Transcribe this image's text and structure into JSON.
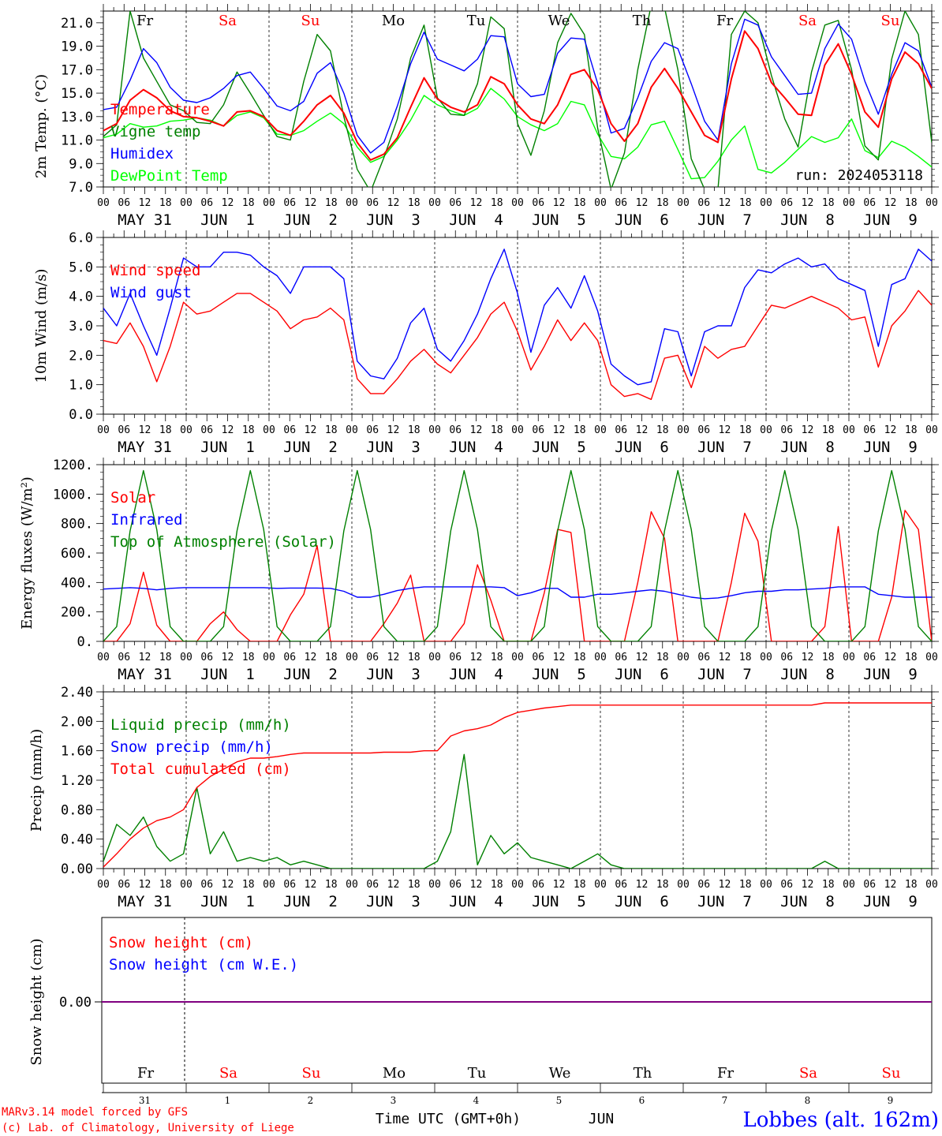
{
  "chart_data": {
    "type": "line",
    "run_label": "run: 2024053118",
    "time_axis": {
      "days": [
        "MAY 31",
        "JUN  1",
        "JUN  2",
        "JUN  3",
        "JUN  4",
        "JUN  5",
        "JUN  6",
        "JUN  7",
        "JUN  8",
        "JUN  9"
      ],
      "hours": [
        "00",
        "06",
        "12",
        "18"
      ],
      "last_hour": "00",
      "weekdays": [
        "Fr",
        "Sa",
        "Su",
        "Mo",
        "Tu",
        "We",
        "Th",
        "Fr",
        "Sa",
        "Su"
      ],
      "day_numbers": [
        "31",
        "1",
        "2",
        "3",
        "4",
        "5",
        "6",
        "7",
        "8",
        "9"
      ],
      "xlabel": "Time UTC (GMT+0h)",
      "month": "JUN",
      "step_hours": 3
    },
    "panels": {
      "temperature": {
        "ylabel": "2m Temp. (°C)",
        "ylim": [
          7,
          22
        ],
        "ticks": [
          "7.0",
          "9.0",
          "11.0",
          "13.0",
          "15.0",
          "17.0",
          "19.0",
          "21.0"
        ],
        "series": [
          {
            "name": "Temperature",
            "color": "#ff0000",
            "values": [
              11.8,
              12.4,
              14.4,
              15.3,
              14.6,
              13.5,
              13.0,
              12.9,
              12.6,
              12.2,
              13.4,
              13.5,
              13.0,
              11.8,
              11.4,
              12.6,
              14.0,
              14.8,
              13.3,
              10.8,
              9.3,
              9.8,
              11.2,
              13.8,
              16.3,
              14.5,
              13.8,
              13.4,
              14.0,
              16.4,
              15.8,
              14.0,
              12.8,
              12.4,
              14.0,
              16.6,
              17.0,
              15.3,
              12.4,
              10.9,
              12.4,
              15.5,
              17.1,
              15.4,
              13.4,
              11.4,
              10.8,
              16.2,
              20.3,
              18.8,
              15.9,
              14.6,
              13.2,
              13.1,
              17.4,
              19.2,
              16.6,
              13.4,
              12.1,
              16.2,
              18.5,
              17.5,
              15.4
            ]
          },
          {
            "name": "Vigne temp",
            "color": "#008000",
            "values": [
              11.3,
              12.3,
              22.0,
              18.0,
              16.0,
              14.0,
              13.5,
              12.5,
              12.4,
              14.0,
              16.8,
              15.0,
              13.1,
              11.3,
              11.0,
              16.0,
              20.0,
              18.6,
              13.0,
              8.5,
              6.6,
              9.5,
              12.8,
              18.0,
              20.8,
              14.6,
              13.2,
              13.1,
              15.8,
              21.5,
              20.5,
              12.4,
              9.7,
              13.5,
              19.3,
              21.8,
              20.0,
              12.0,
              6.8,
              9.9,
              17.0,
              22.5,
              22.3,
              17.0,
              9.4,
              6.8,
              6.8,
              20.0,
              22.0,
              21.0,
              16.5,
              12.8,
              10.4,
              16.8,
              20.8,
              21.2,
              17.0,
              10.5,
              9.3,
              17.9,
              22.0,
              20.0,
              10.8
            ]
          },
          {
            "name": "Humidex",
            "color": "#0000ff",
            "values": [
              13.6,
              13.8,
              16.1,
              18.8,
              17.6,
              15.5,
              14.4,
              14.2,
              14.6,
              15.4,
              16.5,
              16.8,
              15.4,
              13.9,
              13.5,
              14.3,
              16.7,
              17.6,
              15.0,
              11.4,
              9.9,
              10.8,
              13.9,
              17.5,
              20.2,
              17.9,
              17.4,
              16.9,
              17.9,
              19.9,
              19.8,
              15.8,
              14.7,
              14.9,
              18.4,
              19.7,
              19.6,
              15.8,
              11.6,
              12.0,
              14.6,
              17.7,
              19.3,
              18.8,
              15.8,
              12.6,
              11.0,
              17.5,
              21.3,
              20.8,
              18.1,
              16.5,
              14.9,
              15.0,
              18.8,
              20.9,
              19.6,
              16.0,
              13.2,
              16.6,
              19.3,
              18.6,
              15.5
            ]
          },
          {
            "name": "DewPoint Temp",
            "color": "#00ff00",
            "values": [
              11.2,
              11.5,
              12.4,
              12.1,
              12.2,
              12.6,
              12.7,
              12.9,
              12.7,
              12.2,
              13.1,
              13.4,
              12.9,
              11.5,
              11.4,
              11.8,
              12.6,
              13.3,
              12.4,
              10.4,
              9.1,
              9.6,
              11.0,
              12.7,
              14.8,
              14.0,
              13.5,
              13.1,
              13.7,
              15.4,
              14.5,
              13.0,
              12.3,
              11.8,
              12.4,
              14.3,
              14.0,
              11.5,
              9.6,
              9.4,
              10.4,
              12.3,
              12.6,
              10.2,
              7.7,
              7.8,
              9.2,
              11.0,
              12.2,
              8.5,
              8.2,
              9.1,
              10.2,
              11.3,
              10.8,
              11.2,
              12.8,
              10.1,
              9.5,
              10.9,
              10.4,
              9.6,
              8.7
            ]
          }
        ]
      },
      "wind": {
        "ylabel": "10m Wind (m/s)",
        "ylim": [
          0,
          6
        ],
        "ticks": [
          "0.0",
          "1.0",
          "2.0",
          "3.0",
          "4.0",
          "5.0",
          "6.0"
        ],
        "reference_line": 5.0,
        "series": [
          {
            "name": "Wind speed",
            "color": "#ff0000",
            "values": [
              2.5,
              2.4,
              3.1,
              2.3,
              1.1,
              2.3,
              3.8,
              3.4,
              3.5,
              3.8,
              4.1,
              4.1,
              3.8,
              3.5,
              2.9,
              3.2,
              3.3,
              3.6,
              3.2,
              1.2,
              0.7,
              0.7,
              1.2,
              1.8,
              2.2,
              1.7,
              1.4,
              2.0,
              2.6,
              3.4,
              3.8,
              2.8,
              1.5,
              2.3,
              3.2,
              2.5,
              3.1,
              2.5,
              1.0,
              0.6,
              0.7,
              0.5,
              1.9,
              2.0,
              0.9,
              2.3,
              1.9,
              2.2,
              2.3,
              3.0,
              3.7,
              3.6,
              3.8,
              4.0,
              3.8,
              3.6,
              3.2,
              3.3,
              1.6,
              3.0,
              3.5,
              4.2,
              3.7
            ]
          },
          {
            "name": "Wind gust",
            "color": "#0000ff",
            "values": [
              3.6,
              3.0,
              4.1,
              3.0,
              2.0,
              3.6,
              5.3,
              5.0,
              5.0,
              5.5,
              5.5,
              5.4,
              5.0,
              4.7,
              4.1,
              5.0,
              5.0,
              5.0,
              4.6,
              1.8,
              1.3,
              1.2,
              1.9,
              3.1,
              3.6,
              2.2,
              1.8,
              2.5,
              3.4,
              4.6,
              5.6,
              4.1,
              2.1,
              3.7,
              4.3,
              3.6,
              4.7,
              3.5,
              1.7,
              1.3,
              1.0,
              1.1,
              2.9,
              2.8,
              1.3,
              2.8,
              3.0,
              3.0,
              4.3,
              4.9,
              4.8,
              5.1,
              5.3,
              5.0,
              5.1,
              4.6,
              4.4,
              4.2,
              2.3,
              4.4,
              4.6,
              5.6,
              5.2
            ]
          }
        ]
      },
      "energy": {
        "ylabel": "Energy fluxes (W/m²)",
        "ylim": [
          0,
          1200
        ],
        "ticks": [
          "0.",
          "200.",
          "400.",
          "600.",
          "800.",
          "1000.",
          "1200."
        ],
        "series": [
          {
            "name": "Solar",
            "color": "#ff0000",
            "values": [
              0,
              0,
              120,
              470,
              110,
              0,
              0,
              0,
              120,
              200,
              80,
              0,
              0,
              0,
              180,
              320,
              650,
              0,
              0,
              0,
              0,
              120,
              260,
              450,
              0,
              0,
              0,
              120,
              520,
              280,
              0,
              0,
              0,
              330,
              760,
              740,
              0,
              0,
              0,
              0,
              400,
              880,
              700,
              0,
              0,
              0,
              0,
              400,
              870,
              680,
              0,
              0,
              0,
              0,
              100,
              780,
              0,
              0,
              0,
              300,
              890,
              760,
              0
            ]
          },
          {
            "name": "Infrared",
            "color": "#0000ff",
            "values": [
              355,
              360,
              365,
              360,
              350,
              360,
              365,
              365,
              365,
              365,
              365,
              365,
              365,
              360,
              362,
              362,
              362,
              360,
              340,
              300,
              300,
              320,
              345,
              360,
              370,
              370,
              370,
              370,
              370,
              370,
              365,
              310,
              330,
              360,
              360,
              300,
              300,
              320,
              320,
              330,
              340,
              350,
              340,
              320,
              300,
              290,
              295,
              310,
              330,
              340,
              340,
              350,
              350,
              355,
              360,
              370,
              370,
              370,
              320,
              310,
              300,
              300,
              300
            ]
          },
          {
            "name": "Top of Atmosphere (Solar)",
            "color": "#008000",
            "values": [
              0,
              100,
              750,
              1160,
              760,
              100,
              0,
              0,
              0,
              100,
              750,
              1160,
              760,
              100,
              0,
              0,
              0,
              100,
              750,
              1160,
              760,
              100,
              0,
              0,
              0,
              100,
              750,
              1160,
              760,
              100,
              0,
              0,
              0,
              100,
              750,
              1160,
              760,
              100,
              0,
              0,
              0,
              100,
              750,
              1160,
              760,
              100,
              0,
              0,
              0,
              100,
              750,
              1160,
              760,
              100,
              0,
              0,
              0,
              100,
              750,
              1160,
              760,
              100,
              0
            ]
          }
        ]
      },
      "precip": {
        "ylabel": "Precip (mm/h)",
        "ylim": [
          0,
          2.4
        ],
        "ticks": [
          "0.00",
          "0.40",
          "0.80",
          "1.20",
          "1.60",
          "2.00",
          "2.40"
        ],
        "series": [
          {
            "name": "Liquid precip (mm/h)",
            "color": "#008000",
            "values": [
              0.1,
              0.6,
              0.45,
              0.7,
              0.3,
              0.1,
              0.2,
              1.1,
              0.2,
              0.5,
              0.1,
              0.15,
              0.1,
              0.15,
              0.05,
              0.1,
              0.05,
              0,
              0,
              0,
              0,
              0,
              0,
              0,
              0,
              0.1,
              0.5,
              1.55,
              0.05,
              0.45,
              0.2,
              0.35,
              0.15,
              0.1,
              0.05,
              0,
              0.1,
              0.2,
              0.05,
              0,
              0,
              0,
              0,
              0,
              0,
              0,
              0,
              0,
              0,
              0,
              0,
              0,
              0,
              0,
              0.1,
              0,
              0,
              0,
              0,
              0,
              0,
              0,
              0
            ]
          },
          {
            "name": "Snow precip (mm/h)",
            "color": "#0000ff",
            "values": []
          },
          {
            "name": "Total cumulated (cm)",
            "color": "#ff0000",
            "values": [
              0.02,
              0.2,
              0.4,
              0.55,
              0.65,
              0.7,
              0.8,
              1.1,
              1.25,
              1.35,
              1.45,
              1.5,
              1.5,
              1.52,
              1.55,
              1.57,
              1.57,
              1.57,
              1.57,
              1.57,
              1.57,
              1.58,
              1.58,
              1.58,
              1.6,
              1.6,
              1.8,
              1.87,
              1.9,
              1.95,
              2.05,
              2.12,
              2.15,
              2.18,
              2.2,
              2.22,
              2.22,
              2.22,
              2.22,
              2.22,
              2.22,
              2.22,
              2.22,
              2.22,
              2.22,
              2.22,
              2.22,
              2.22,
              2.22,
              2.22,
              2.22,
              2.22,
              2.22,
              2.22,
              2.25,
              2.25,
              2.25,
              2.25,
              2.25,
              2.25,
              2.25,
              2.25,
              2.25
            ]
          }
        ]
      },
      "snow": {
        "ylabel": "Snow height (cm)",
        "ticks": [
          "0.00"
        ],
        "series": [
          {
            "name": "Snow height (cm)",
            "color": "#ff0000",
            "values": [
              0,
              0
            ]
          },
          {
            "name": "Snow height (cm W.E.)",
            "color": "#0000ff",
            "values": [
              0,
              0
            ]
          }
        ]
      }
    }
  },
  "credits": {
    "model": "MARv3.14 model forced by GFS",
    "lab": "(c) Lab. of Climatology, University of Liege",
    "station": "Lobbes (alt. 162m)"
  }
}
